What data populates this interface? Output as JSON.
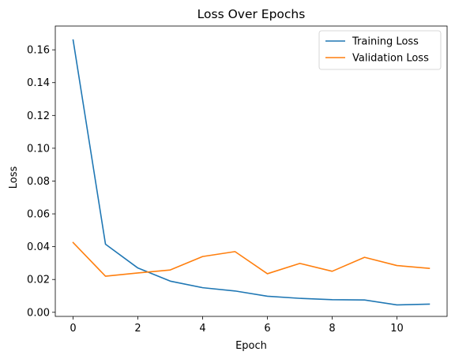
{
  "chart_data": {
    "type": "line",
    "title": "Loss Over Epochs",
    "xlabel": "Epoch",
    "ylabel": "Loss",
    "xlim": [
      -0.55,
      11.55
    ],
    "ylim": [
      -0.0025,
      0.1745
    ],
    "xticks": [
      0,
      2,
      4,
      6,
      8,
      10
    ],
    "xtick_labels": [
      "0",
      "2",
      "4",
      "6",
      "8",
      "10"
    ],
    "yticks": [
      0.0,
      0.02,
      0.04,
      0.06,
      0.08,
      0.1,
      0.12,
      0.14,
      0.16
    ],
    "ytick_labels": [
      "0.00",
      "0.02",
      "0.04",
      "0.06",
      "0.08",
      "0.10",
      "0.12",
      "0.14",
      "0.16"
    ],
    "grid": false,
    "legend_position": "top-right",
    "x": [
      0,
      1,
      2,
      3,
      4,
      5,
      6,
      7,
      8,
      9,
      10,
      11
    ],
    "series": [
      {
        "name": "Training Loss",
        "color": "#1f77b4",
        "values": [
          0.166,
          0.0415,
          0.027,
          0.019,
          0.015,
          0.013,
          0.0098,
          0.0085,
          0.0077,
          0.0075,
          0.0045,
          0.005
        ]
      },
      {
        "name": "Validation Loss",
        "color": "#ff7f0e",
        "values": [
          0.0425,
          0.022,
          0.024,
          0.0258,
          0.034,
          0.037,
          0.0235,
          0.0298,
          0.025,
          0.0335,
          0.0285,
          0.0268
        ]
      }
    ]
  }
}
